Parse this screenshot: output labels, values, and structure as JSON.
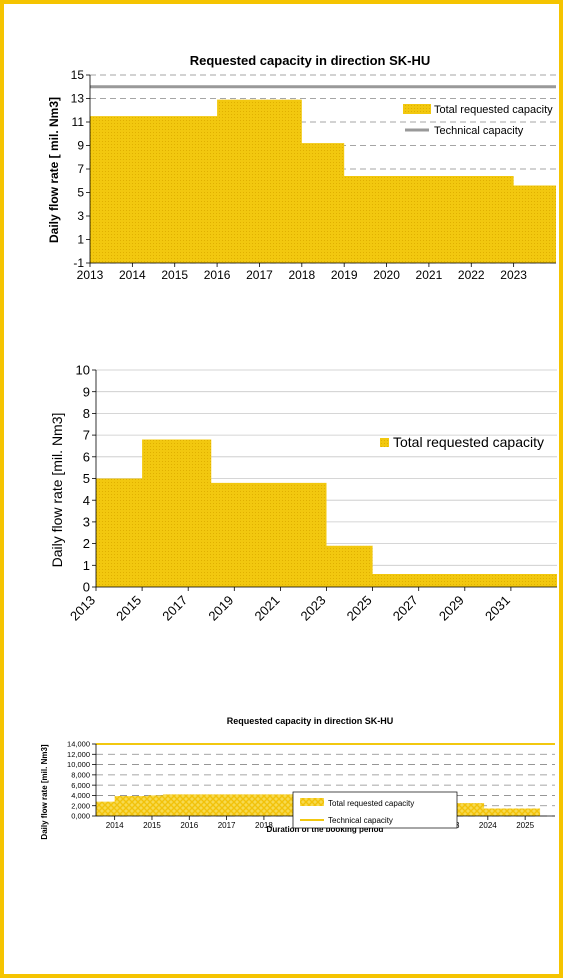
{
  "colors": {
    "frame": "#f5c400",
    "fill": "#f2c80f",
    "tech1": "#999999",
    "tech3": "#f2c80f"
  },
  "chart_data": [
    {
      "type": "area",
      "title": "Requested capacity in direction SK-HU",
      "ylabel": "Daily flow rate [ mil. Nm3]",
      "xlabel": "",
      "ylim": [
        -1,
        15
      ],
      "yticks": [
        -1,
        1,
        3,
        5,
        7,
        9,
        11,
        13,
        15
      ],
      "xlim": [
        2013,
        2024
      ],
      "xticks": [
        "2013",
        "2014",
        "2015",
        "2016",
        "2017",
        "2018",
        "2019",
        "2020",
        "2021",
        "2022",
        "2023"
      ],
      "grid": true,
      "legend_placement": "right",
      "series": [
        {
          "name": "Total requested capacity",
          "steps": [
            [
              2013,
              2016,
              11.5
            ],
            [
              2016,
              2018,
              12.9
            ],
            [
              2018,
              2019,
              9.2
            ],
            [
              2019,
              2023,
              6.4
            ],
            [
              2023,
              2024,
              5.6
            ]
          ]
        },
        {
          "name": "Technical capacity",
          "value": 14
        }
      ]
    },
    {
      "type": "area",
      "title": "",
      "ylabel": "Daily flow rate [mil. Nm3]",
      "xlabel": "",
      "ylim": [
        0,
        10
      ],
      "yticks": [
        0,
        1,
        2,
        3,
        4,
        5,
        6,
        7,
        8,
        9,
        10
      ],
      "xlim": [
        2013,
        2033
      ],
      "xticks": [
        "2013",
        "2015",
        "2017",
        "2019",
        "2021",
        "2023",
        "2025",
        "2027",
        "2029",
        "2031"
      ],
      "grid": true,
      "legend_placement": "right",
      "series": [
        {
          "name": "Total requested capacity",
          "steps": [
            [
              2013,
              2015,
              5.0
            ],
            [
              2015,
              2018,
              6.8
            ],
            [
              2018,
              2023,
              4.8
            ],
            [
              2023,
              2025,
              1.9
            ],
            [
              2025,
              2033,
              0.6
            ]
          ]
        }
      ]
    },
    {
      "type": "area",
      "title": "Requested capacity in direction SK-HU",
      "ylabel": "Daily flow rate [mil. Nm3]",
      "xlabel": "Duration of the booking period",
      "ylim": [
        0,
        14000
      ],
      "yticks": [
        "0,000",
        "2,000",
        "4,000",
        "6,000",
        "8,000",
        "10,000",
        "12,000",
        "14,000"
      ],
      "xlim": [
        2013.5,
        2025.8
      ],
      "xticks": [
        "2014",
        "2015",
        "2016",
        "2017",
        "2018",
        "2019",
        "2020",
        "2021",
        "2022",
        "2023",
        "2024",
        "2025"
      ],
      "grid": true,
      "legend_placement": "center",
      "series": [
        {
          "name": "Total requested capacity",
          "steps": [
            [
              2013.5,
              2014,
              2800
            ],
            [
              2014,
              2014.9,
              3900
            ],
            [
              2014.9,
              2015.3,
              4000
            ],
            [
              2015.3,
              2018.9,
              4200
            ],
            [
              2018.9,
              2023.9,
              2500
            ],
            [
              2023.9,
              2025.4,
              1450
            ]
          ]
        },
        {
          "name": "Technical capacity",
          "value": 14000
        }
      ]
    }
  ]
}
